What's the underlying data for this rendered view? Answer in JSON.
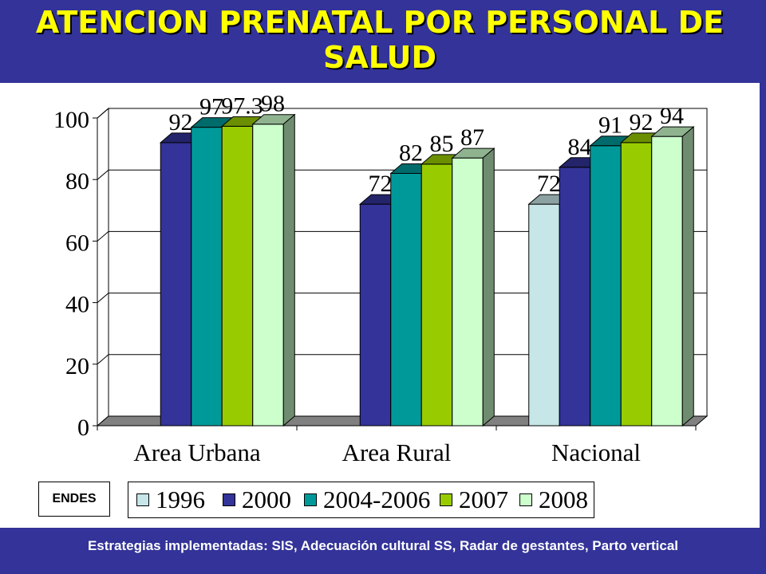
{
  "slide": {
    "title": "ATENCION PRENATAL POR PERSONAL  DE SALUD",
    "source_label": "ENDES",
    "footer": "Estrategias implementadas: SIS, Adecuación cultural  SS, Radar de gestantes, Parto vertical"
  },
  "colors": {
    "background": "#333399",
    "title": "#FFFF00",
    "1996": "#C6E6E8",
    "2000": "#333399",
    "2004-2006": "#009999",
    "2007": "#99CC00",
    "2008": "#CCFFCC"
  },
  "chart_data": {
    "type": "bar",
    "style": "3d-clustered-column",
    "categories": [
      "Area Urbana",
      "Area Rural",
      "Nacional"
    ],
    "series": [
      {
        "name": "1996",
        "values": [
          null,
          null,
          72
        ],
        "labels": [
          "",
          "",
          "72"
        ]
      },
      {
        "name": "2000",
        "values": [
          92,
          72,
          84
        ],
        "labels": [
          "92",
          "72",
          "84"
        ]
      },
      {
        "name": "2004-2006",
        "values": [
          97,
          82,
          91
        ],
        "labels": [
          "97",
          "82",
          "91"
        ]
      },
      {
        "name": "2007",
        "values": [
          97.3,
          85,
          92
        ],
        "labels": [
          "97.3",
          "85",
          "92"
        ]
      },
      {
        "name": "2008",
        "values": [
          98,
          87,
          94
        ],
        "labels": [
          "98",
          "87",
          "94"
        ]
      }
    ],
    "ylim": [
      0,
      100
    ],
    "yticks": [
      "0",
      "20",
      "40",
      "60",
      "80",
      "100"
    ],
    "grid": true,
    "legend": "bottom"
  }
}
